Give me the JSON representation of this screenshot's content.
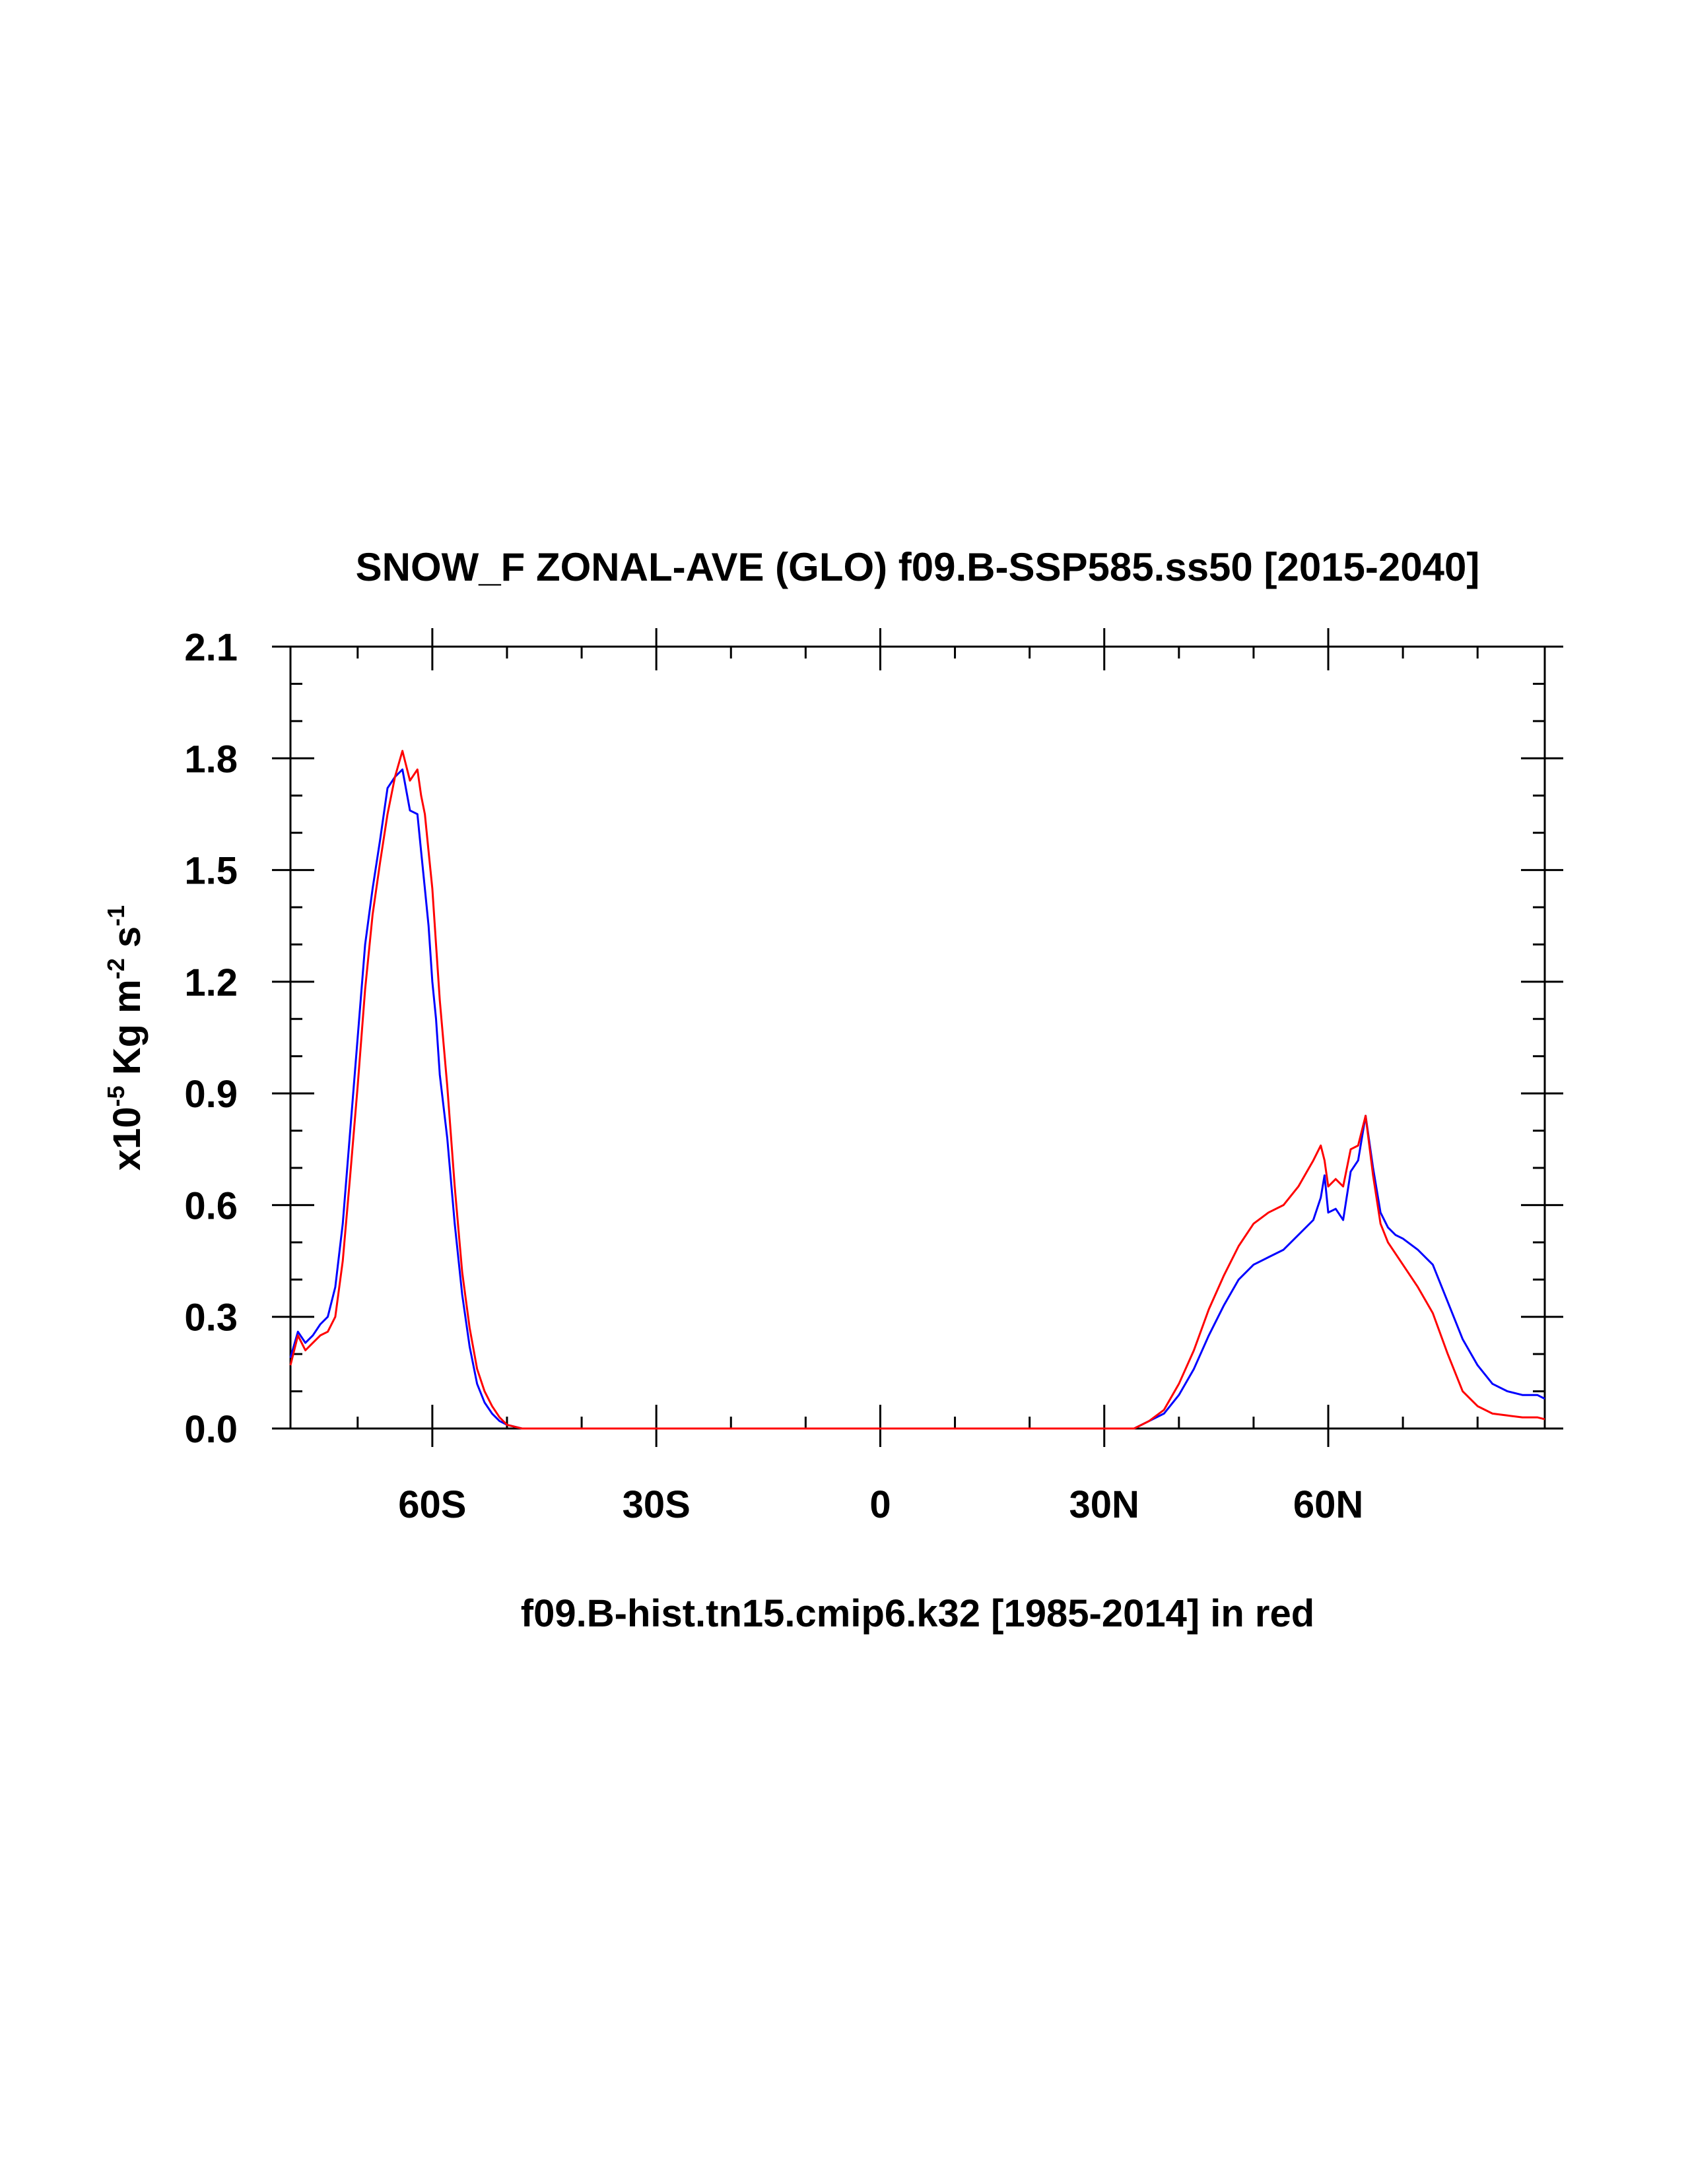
{
  "chart_data": {
    "type": "line",
    "title": "SNOW_F ZONAL-AVE (GLO) f09.B-SSP585.ss50 [2015-2040]",
    "xlabel": "f09.B-hist.tn15.cmip6.k32 [1985-2014] in red",
    "ylabel": {
      "prefix": "x10",
      "exp": "-5",
      "mid": " Kg m",
      "exp2": "-2",
      "mid2": " s",
      "exp3": "-1"
    },
    "xlim": [
      -79,
      89
    ],
    "ylim": [
      0,
      2.1
    ],
    "x_ticks": [
      {
        "value": -60,
        "label": "60S"
      },
      {
        "value": -30,
        "label": "30S"
      },
      {
        "value": 0,
        "label": "0"
      },
      {
        "value": 30,
        "label": "30N"
      },
      {
        "value": 60,
        "label": "60N"
      }
    ],
    "x_minor_step": 10,
    "y_ticks": [
      {
        "value": 0,
        "label": "0.0"
      },
      {
        "value": 0.3,
        "label": "0.3"
      },
      {
        "value": 0.6,
        "label": "0.6"
      },
      {
        "value": 0.9,
        "label": "0.9"
      },
      {
        "value": 1.2,
        "label": "1.2"
      },
      {
        "value": 1.5,
        "label": "1.5"
      },
      {
        "value": 1.8,
        "label": "1.8"
      },
      {
        "value": 2.1,
        "label": "2.1"
      }
    ],
    "y_minor_step": 0.1,
    "grid": false,
    "series": [
      {
        "name": "f09.B-SSP585.ss50 [2015-2040]",
        "color": "#0000ff",
        "x": [
          -79,
          -78,
          -77,
          -76,
          -75,
          -74,
          -73,
          -72,
          -71,
          -70,
          -69,
          -68,
          -67,
          -66,
          -65,
          -64,
          -63,
          -62,
          -61.5,
          -61,
          -60.5,
          -60,
          -59.5,
          -59,
          -58,
          -57,
          -56,
          -55,
          -54,
          -53,
          -52,
          -51,
          -50,
          -49,
          -48,
          -47,
          -46,
          -45,
          -44,
          -42,
          -40,
          -35,
          0,
          30,
          34,
          36,
          38,
          40,
          42,
          44,
          46,
          48,
          50,
          52,
          54,
          56,
          58,
          59,
          59.5,
          60,
          61,
          62,
          63,
          64,
          65,
          66,
          67,
          68,
          69,
          70,
          72,
          74,
          76,
          78,
          80,
          82,
          84,
          86,
          88,
          89
        ],
        "y": [
          0.19,
          0.26,
          0.23,
          0.25,
          0.28,
          0.3,
          0.38,
          0.55,
          0.8,
          1.05,
          1.3,
          1.45,
          1.58,
          1.72,
          1.75,
          1.77,
          1.66,
          1.65,
          1.55,
          1.45,
          1.35,
          1.2,
          1.1,
          0.95,
          0.78,
          0.55,
          0.36,
          0.22,
          0.12,
          0.07,
          0.04,
          0.02,
          0.01,
          0.005,
          0.0,
          0.0,
          0.0,
          0.0,
          0.0,
          0.0,
          0.0,
          0.0,
          0.0,
          0.0,
          0.0,
          0.02,
          0.04,
          0.09,
          0.16,
          0.25,
          0.33,
          0.4,
          0.44,
          0.46,
          0.48,
          0.52,
          0.56,
          0.62,
          0.68,
          0.58,
          0.59,
          0.56,
          0.69,
          0.72,
          0.84,
          0.7,
          0.58,
          0.54,
          0.52,
          0.51,
          0.48,
          0.44,
          0.34,
          0.24,
          0.17,
          0.12,
          0.1,
          0.09,
          0.09,
          0.08
        ]
      },
      {
        "name": "f09.B-hist.tn15.cmip6.k32 [1985-2014]",
        "color": "#ff0000",
        "x": [
          -79,
          -78,
          -77,
          -76,
          -75,
          -74,
          -73,
          -72,
          -71,
          -70,
          -69,
          -68,
          -67,
          -66,
          -65,
          -64,
          -63,
          -62,
          -61.5,
          -61,
          -60.5,
          -60,
          -59.5,
          -59,
          -58,
          -57,
          -56,
          -55,
          -54,
          -53,
          -52,
          -51,
          -50,
          -49,
          -48,
          -47,
          -46,
          -45,
          -44,
          -42,
          -40,
          -35,
          0,
          30,
          34,
          36,
          38,
          40,
          42,
          44,
          46,
          48,
          50,
          52,
          54,
          56,
          58,
          59,
          59.5,
          60,
          61,
          62,
          63,
          64,
          65,
          66,
          67,
          68,
          69,
          70,
          72,
          74,
          76,
          78,
          80,
          82,
          84,
          86,
          88,
          89
        ],
        "y": [
          0.17,
          0.25,
          0.21,
          0.23,
          0.25,
          0.26,
          0.3,
          0.45,
          0.68,
          0.92,
          1.18,
          1.38,
          1.52,
          1.65,
          1.75,
          1.82,
          1.74,
          1.77,
          1.7,
          1.65,
          1.55,
          1.45,
          1.3,
          1.15,
          0.92,
          0.65,
          0.42,
          0.27,
          0.16,
          0.1,
          0.06,
          0.03,
          0.01,
          0.005,
          0.0,
          0.0,
          0.0,
          0.0,
          0.0,
          0.0,
          0.0,
          0.0,
          0.0,
          0.0,
          0.0,
          0.02,
          0.05,
          0.12,
          0.21,
          0.32,
          0.41,
          0.49,
          0.55,
          0.58,
          0.6,
          0.65,
          0.72,
          0.76,
          0.72,
          0.65,
          0.67,
          0.65,
          0.75,
          0.76,
          0.84,
          0.68,
          0.55,
          0.5,
          0.47,
          0.44,
          0.38,
          0.31,
          0.2,
          0.1,
          0.06,
          0.04,
          0.035,
          0.03,
          0.03,
          0.025
        ]
      }
    ]
  }
}
